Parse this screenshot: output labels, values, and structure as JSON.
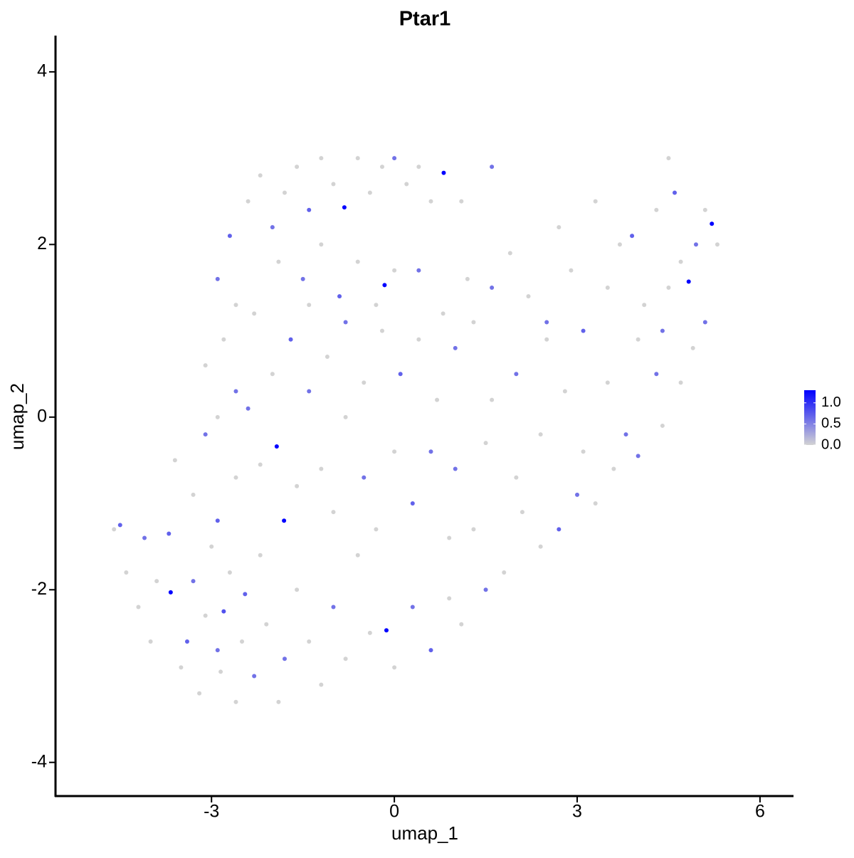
{
  "chart_data": {
    "type": "scatter",
    "title": "Ptar1",
    "x_label": "umap_1",
    "y_label": "umap_2",
    "xlim": [
      -5.56,
      6.55
    ],
    "ylim": [
      -4.39,
      4.42
    ],
    "xticks": [
      -3,
      0,
      3,
      6
    ],
    "yticks": [
      -4,
      -2,
      0,
      2,
      4
    ],
    "grid": false,
    "legend_position": "right",
    "colors": [
      "#d3d3d3",
      "#0000ff"
    ],
    "colorlim": [
      0,
      1.3
    ],
    "colorticks": [
      {
        "value": 0,
        "label": "0.0"
      },
      {
        "value": 0.5,
        "label": "0.5"
      },
      {
        "value": 1,
        "label": "1.0"
      }
    ],
    "x": [
      -4.6,
      -4.5,
      -4.4,
      -4.2,
      -4.1,
      -4.0,
      -3.9,
      -3.7,
      -3.67,
      -3.5,
      -3.4,
      -3.3,
      -3.2,
      -3.1,
      -3.0,
      -2.9,
      -2.85,
      -2.8,
      -2.7,
      -2.6,
      -2.5,
      -2.45,
      -2.3,
      -2.2,
      -2.1,
      -1.9,
      -1.8,
      -1.6,
      -1.4,
      -1.2,
      -1.0,
      -0.8,
      -0.6,
      -0.4,
      -0.13,
      0.0,
      0.3,
      0.6,
      0.9,
      1.1,
      -3.6,
      -3.3,
      -3.1,
      -2.9,
      -2.6,
      -2.4,
      -2.2,
      -1.93,
      -1.81,
      -1.6,
      -1.4,
      -1.2,
      -1.0,
      -0.8,
      -0.5,
      -0.3,
      0.0,
      0.3,
      0.6,
      0.9,
      -3.1,
      -2.8,
      -2.6,
      -2.3,
      -2.0,
      -1.7,
      -1.4,
      -1.1,
      -0.8,
      -0.5,
      -0.2,
      0.1,
      0.4,
      0.7,
      1.0,
      1.3,
      -0.16,
      -2.9,
      -2.6,
      -2.9,
      -2.7,
      -2.4,
      -2.2,
      -2.0,
      -1.8,
      -1.6,
      -1.4,
      -1.2,
      -1.0,
      -0.82,
      -0.6,
      -0.4,
      -0.2,
      0.0,
      0.2,
      0.4,
      0.6,
      0.81,
      1.1,
      1.6,
      -1.9,
      -1.5,
      -1.2,
      -0.9,
      -0.6,
      -0.3,
      0.0,
      0.4,
      0.8,
      1.2,
      1.6,
      1.9,
      2.2,
      2.5,
      2.7,
      2.9,
      3.1,
      3.3,
      3.5,
      3.7,
      3.9,
      4.1,
      4.3,
      4.4,
      4.5,
      4.6,
      4.7,
      4.83,
      4.95,
      5.1,
      5.21,
      5.3,
      5.1,
      4.9,
      4.7,
      4.5,
      4.3,
      4.0,
      3.8,
      3.5,
      4.4,
      4.0,
      3.6,
      3.3,
      3.0,
      2.7,
      2.4,
      2.1,
      1.8,
      1.5,
      1.3,
      1.0,
      1.5,
      2.0,
      2.4,
      2.8,
      3.1,
      2.0,
      1.6,
      2.5
    ],
    "y": [
      -1.3,
      -1.25,
      -1.8,
      -2.2,
      -1.4,
      -2.6,
      -1.9,
      -1.35,
      -2.03,
      -2.9,
      -2.6,
      -1.9,
      -3.2,
      -2.3,
      -1.5,
      -2.7,
      -2.95,
      -2.25,
      -1.8,
      -3.3,
      -2.6,
      -2.05,
      -3.0,
      -1.6,
      -2.4,
      -3.3,
      -2.8,
      -2.0,
      -2.6,
      -3.1,
      -2.2,
      -2.8,
      -1.6,
      -2.5,
      -2.47,
      -2.9,
      -2.2,
      -2.7,
      -2.1,
      -2.4,
      -0.5,
      -0.9,
      -0.2,
      -1.2,
      -0.7,
      0.1,
      -0.55,
      -0.34,
      -1.2,
      -0.8,
      0.3,
      -0.6,
      -1.1,
      0.0,
      -0.7,
      -1.3,
      -0.4,
      -1.0,
      -0.4,
      -1.4,
      0.6,
      0.9,
      0.3,
      1.2,
      0.5,
      0.9,
      1.3,
      0.7,
      1.1,
      0.4,
      1.0,
      0.5,
      0.9,
      0.2,
      0.8,
      1.1,
      1.53,
      1.6,
      1.3,
      0.0,
      2.1,
      2.5,
      2.8,
      2.2,
      2.6,
      2.9,
      2.4,
      3.0,
      2.7,
      2.43,
      3.0,
      2.6,
      2.9,
      3.0,
      2.7,
      2.9,
      2.5,
      2.83,
      2.5,
      2.9,
      1.8,
      1.6,
      2.0,
      1.4,
      1.8,
      1.3,
      1.7,
      1.7,
      1.2,
      1.6,
      1.5,
      1.9,
      1.4,
      1.1,
      2.2,
      1.7,
      1.0,
      2.5,
      1.5,
      2.0,
      2.1,
      1.3,
      2.4,
      1.0,
      3.0,
      2.6,
      1.8,
      1.57,
      2.0,
      2.4,
      2.24,
      2.0,
      1.1,
      0.8,
      0.4,
      1.5,
      0.5,
      0.9,
      -0.2,
      0.4,
      -0.1,
      -0.45,
      -0.6,
      -1.0,
      -0.9,
      -1.3,
      -1.5,
      -1.1,
      -1.8,
      -2.0,
      -1.3,
      -0.6,
      -0.3,
      -0.7,
      -0.2,
      0.3,
      -0.4,
      0.5,
      0.2,
      0.9
    ],
    "values": [
      0,
      0.7,
      0,
      0,
      0.6,
      0,
      0,
      0.7,
      1.3,
      0,
      0.7,
      0.6,
      0,
      0,
      0,
      0.6,
      0,
      0.8,
      0,
      0,
      0,
      0.7,
      0.6,
      0,
      0,
      0,
      0.6,
      0,
      0,
      0,
      0.6,
      0,
      0,
      0,
      1.3,
      0,
      0.6,
      0.7,
      0,
      0,
      0,
      0,
      0.6,
      0.7,
      0,
      0.6,
      0,
      1.3,
      1.3,
      0,
      0.6,
      0,
      0,
      0,
      0.6,
      0,
      0,
      0.7,
      0.6,
      0,
      0,
      0,
      0.6,
      0,
      0,
      0.7,
      0,
      0,
      0.6,
      0,
      0,
      0.7,
      0,
      0,
      0.6,
      0,
      1.3,
      0.6,
      0,
      0,
      0.7,
      0,
      0,
      0.6,
      0,
      0,
      0.7,
      0,
      0,
      1.3,
      0,
      0,
      0,
      0.6,
      0,
      0,
      0,
      1.3,
      0,
      0.6,
      0,
      0.6,
      0,
      0.7,
      0,
      0,
      0,
      0.6,
      0,
      0,
      0.6,
      0,
      0,
      0.6,
      0,
      0,
      0.7,
      0,
      0,
      0,
      0.7,
      0,
      0,
      0.6,
      0,
      0.7,
      0,
      1.3,
      0.6,
      0,
      1.3,
      0,
      0.6,
      0,
      0,
      0,
      0.6,
      0,
      0.6,
      0,
      0,
      0.6,
      0,
      0,
      0.6,
      0.7,
      0,
      0,
      0,
      0.6,
      0,
      0.6,
      0,
      0,
      0,
      0,
      0,
      0.6,
      0,
      0
    ]
  }
}
